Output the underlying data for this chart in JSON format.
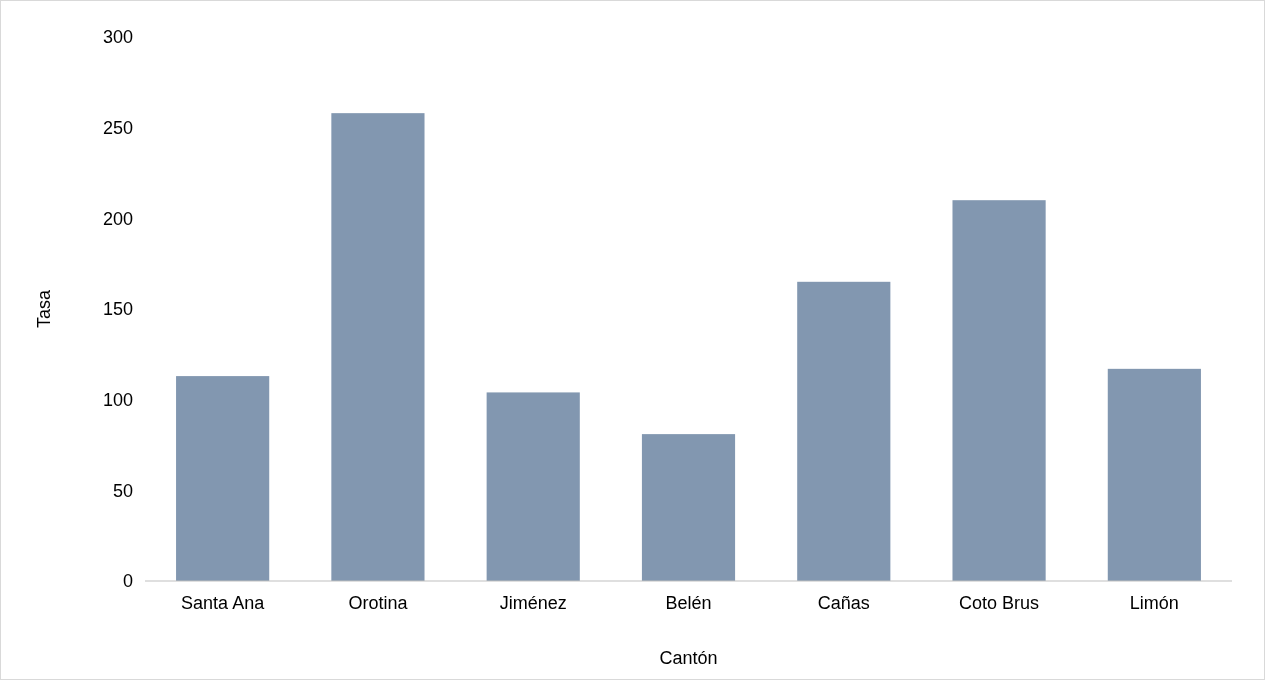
{
  "chart_data": {
    "type": "bar",
    "xlabel": "Cantón",
    "ylabel": "Tasa",
    "categories": [
      "Santa Ana",
      "Orotina",
      "Jiménez",
      "Belén",
      "Cañas",
      "Coto Brus",
      "Limón"
    ],
    "values": [
      113,
      258,
      104,
      81,
      165,
      210,
      117
    ],
    "color": "#8297b0",
    "ylim": [
      0,
      300
    ],
    "yticks": [
      0,
      50,
      100,
      150,
      200,
      250,
      300
    ],
    "grid": false
  }
}
